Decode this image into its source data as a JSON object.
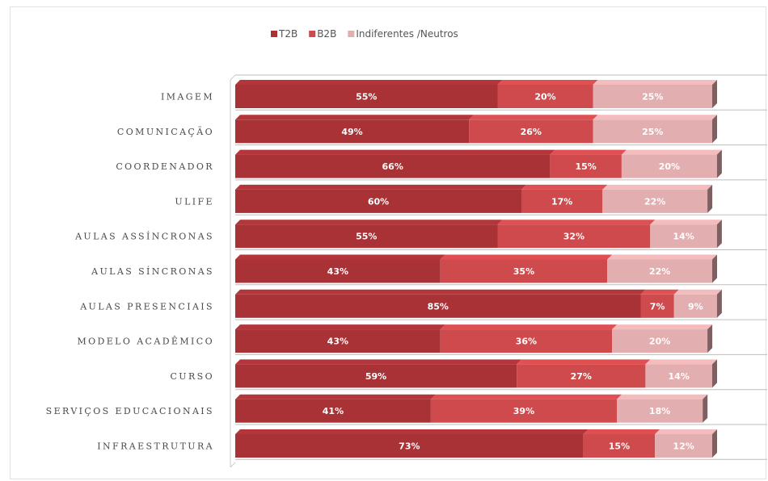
{
  "chart_data": {
    "type": "bar",
    "orientation": "horizontal",
    "stacked": true,
    "legend_position": "top",
    "categories": [
      "IMAGEM",
      "COMUNICAÇÃO",
      "COORDENADOR",
      "ULIFE",
      "AULAS ASSÍNCRONAS",
      "AULAS SÍNCRONAS",
      "AULAS PRESENCIAIS",
      "MODELO ACADÊMICO",
      "CURSO",
      "SERVIÇOS EDUCACIONAIS",
      "INFRAESTRUTURA"
    ],
    "series": [
      {
        "name": "T2B",
        "color": "#a83236",
        "values": [
          55,
          49,
          66,
          60,
          55,
          43,
          85,
          43,
          59,
          41,
          73
        ],
        "labels": [
          "55%",
          "49%",
          "66%",
          "60%",
          "55%",
          "43%",
          "85%",
          "43%",
          "59%",
          "41%",
          "73%"
        ]
      },
      {
        "name": "B2B",
        "color": "#cf4a4c",
        "values": [
          20,
          26,
          15,
          17,
          32,
          35,
          7,
          36,
          27,
          39,
          15
        ],
        "labels": [
          "20%",
          "26%",
          "15%",
          "17%",
          "32%",
          "35%",
          "7%",
          "36%",
          "27%",
          "39%",
          "15%"
        ]
      },
      {
        "name": "Indiferentes /Neutros",
        "color": "#e3aeb0",
        "values": [
          25,
          25,
          20,
          22,
          14,
          22,
          9,
          20,
          14,
          18,
          12
        ],
        "labels": [
          "25%",
          "25%",
          "20%",
          "22%",
          "14%",
          "22%",
          "9%",
          "20%",
          "14%",
          "18%",
          "12%"
        ]
      }
    ],
    "xlim": [
      0,
      100
    ],
    "grid": true
  }
}
